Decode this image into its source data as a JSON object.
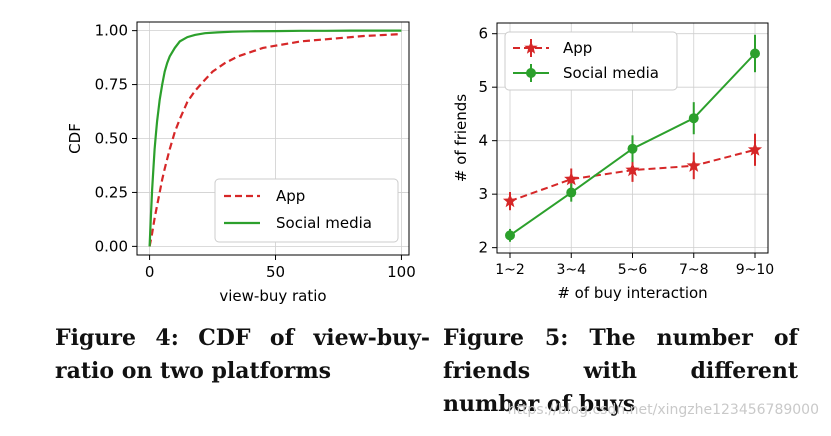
{
  "colors": {
    "app": "#d62728",
    "social": "#2ca02c",
    "axis": "#000000",
    "grid": "#cfcfcf"
  },
  "figure4": {
    "caption": "Figure 4: CDF of view-buy-ratio on two platforms"
  },
  "figure5": {
    "caption": "Figure 5: The number of friends with different number of buys"
  },
  "watermark": "https://blog.csdn.net/xingzhe123456789000",
  "chart_data": [
    {
      "type": "line",
      "title": "",
      "xlabel": "view-buy ratio",
      "ylabel": "CDF",
      "xlim": [
        -5,
        103
      ],
      "ylim": [
        -0.04,
        1.04
      ],
      "xticks": [
        0,
        50,
        100
      ],
      "xtick_labels": [
        "0",
        "50",
        "100"
      ],
      "yticks": [
        0,
        0.25,
        0.5,
        0.75,
        1.0
      ],
      "ytick_labels": [
        "0.00",
        "0.25",
        "0.50",
        "0.75",
        "1.00"
      ],
      "grid": true,
      "legend_position": "lower-right",
      "series": [
        {
          "name": "App",
          "style": "dashed",
          "x": [
            0,
            1,
            2,
            3,
            4,
            5,
            6,
            8,
            10,
            12,
            15,
            18,
            21,
            25,
            30,
            35,
            40,
            45,
            50,
            55,
            60,
            65,
            70,
            75,
            80,
            85,
            90,
            95,
            100
          ],
          "y": [
            0,
            0.06,
            0.13,
            0.19,
            0.25,
            0.31,
            0.36,
            0.45,
            0.53,
            0.59,
            0.67,
            0.72,
            0.76,
            0.81,
            0.85,
            0.88,
            0.9,
            0.92,
            0.93,
            0.94,
            0.95,
            0.955,
            0.96,
            0.965,
            0.97,
            0.975,
            0.978,
            0.981,
            0.984
          ]
        },
        {
          "name": "Social media",
          "style": "solid",
          "x": [
            0,
            0.5,
            1,
            1.5,
            2,
            2.5,
            3,
            3.5,
            4,
            5,
            6,
            7,
            8,
            10,
            12,
            15,
            18,
            22,
            27,
            33,
            40,
            50,
            60,
            70,
            80,
            90,
            100
          ],
          "y": [
            0,
            0.14,
            0.26,
            0.36,
            0.45,
            0.52,
            0.58,
            0.63,
            0.68,
            0.75,
            0.81,
            0.85,
            0.88,
            0.92,
            0.95,
            0.97,
            0.98,
            0.988,
            0.992,
            0.995,
            0.997,
            0.998,
            0.999,
            0.999,
            1.0,
            1.0,
            1.0
          ]
        }
      ]
    },
    {
      "type": "line",
      "title": "",
      "xlabel": "# of buy interaction",
      "ylabel": "# of friends",
      "categories": [
        "1~2",
        "3~4",
        "5~6",
        "7~8",
        "9~10"
      ],
      "ylim": [
        1.9,
        6.2
      ],
      "yticks": [
        2,
        3,
        4,
        5,
        6
      ],
      "ytick_labels": [
        "2",
        "3",
        "4",
        "5",
        "6"
      ],
      "grid": true,
      "legend_position": "upper-left",
      "series": [
        {
          "name": "App",
          "style": "dashed",
          "marker": "star",
          "values": [
            2.87,
            3.28,
            3.45,
            3.53,
            3.83
          ],
          "errors": [
            0.17,
            0.2,
            0.22,
            0.25,
            0.3
          ]
        },
        {
          "name": "Social media",
          "style": "solid",
          "marker": "circle",
          "values": [
            2.23,
            3.03,
            3.85,
            4.42,
            5.63
          ],
          "errors": [
            0.12,
            0.17,
            0.25,
            0.3,
            0.35
          ]
        }
      ]
    }
  ]
}
